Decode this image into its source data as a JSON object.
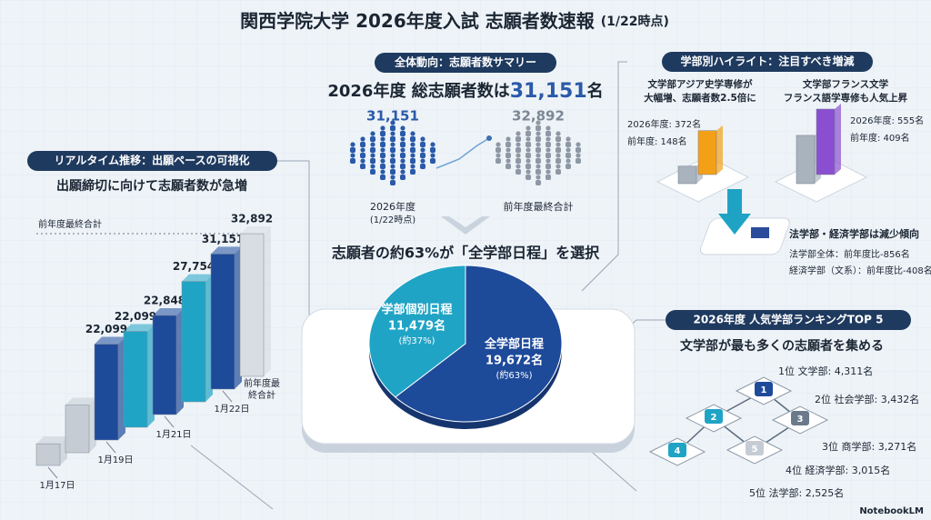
{
  "title": "関西学院大学 2026年度入試 志願者数速報",
  "title_note": "(1/22時点)",
  "summary": {
    "badge": "全体動向：志願者数サマリー",
    "headline": {
      "prefix": "2026年度 総志願者数は",
      "value": "31,151",
      "suffix": "名"
    },
    "current": {
      "value": "31,151",
      "label": "2026年度",
      "note": "(1/22時点)"
    },
    "previous": {
      "value": "32,892",
      "label": "前年度最終合計"
    },
    "pie_heading": "志願者の約63%が「全学部日程」を選択"
  },
  "chart_data": [
    {
      "type": "pie",
      "categories": [
        "全学部日程",
        "学部個別日程"
      ],
      "counts": [
        "19,672名",
        "11,479名"
      ],
      "values": [
        63,
        37
      ],
      "value_labels": [
        "(約63%)",
        "(約37%)"
      ],
      "colors": [
        "#1e4a9a",
        "#20a4c6"
      ]
    },
    {
      "type": "bar",
      "badge": "リアルタイム推移：出願ペースの可視化",
      "subtitle": "出願締切に向けて志願者数が急増",
      "reference_label": "前年度最終合計",
      "categories": [
        "1月17日",
        null,
        "1月19日",
        null,
        "1月21日",
        null,
        "1月22日",
        "前年度最終合計"
      ],
      "values": [
        5000,
        11000,
        22099,
        22099,
        22848,
        27754,
        31151,
        32892
      ],
      "value_labels": [
        null,
        null,
        "22,099",
        "22,099",
        "22,848",
        "27,754",
        "31,151",
        "32,892"
      ],
      "colors": [
        "#c5ccd4",
        "#c5ccd4",
        "#1e4a9a",
        "#20a4c6",
        "#1e4a9a",
        "#20a4c6",
        "#1e4a9a",
        "#d7dde3"
      ],
      "ylim": [
        0,
        35000
      ]
    }
  ],
  "highlights": {
    "badge": "学部別ハイライト：注目すべき増減",
    "items": [
      {
        "title": [
          "文学部アジア史学専修が",
          "大幅増、志願者数2.5倍に"
        ],
        "current_label": "2026年度: 372名",
        "previous_label": "前年度: 148名",
        "values": [
          372,
          148
        ],
        "colors": [
          "#f4a017",
          "#a9b3bd"
        ]
      },
      {
        "title": [
          "文学部フランス文学",
          "フランス語学専修も人気上昇"
        ],
        "current_label": "2026年度: 555名",
        "previous_label": "前年度: 409名",
        "values": [
          555,
          409
        ],
        "colors": [
          "#8a4fd0",
          "#a9b3bd"
        ]
      }
    ],
    "decline": {
      "title": "法学部・経済学部は減少傾向",
      "lines": [
        "法学部全体：前年度比-856名",
        "経済学部（文系）：前年度比-408名"
      ]
    }
  },
  "ranking": {
    "badge": "2026年度 人気学部ランキングTOP 5",
    "subtitle": "文学部が最も多くの志願者を集める",
    "items": [
      "1位 文学部: 4,311名",
      "2位 社会学部: 3,432名",
      "3位 商学部: 3,271名",
      "4位 経済学部: 3,015名",
      "5位 法学部: 2,525名"
    ],
    "node_labels": [
      "1",
      "2",
      "3",
      "4",
      "5"
    ]
  },
  "footer": "NotebookLM"
}
